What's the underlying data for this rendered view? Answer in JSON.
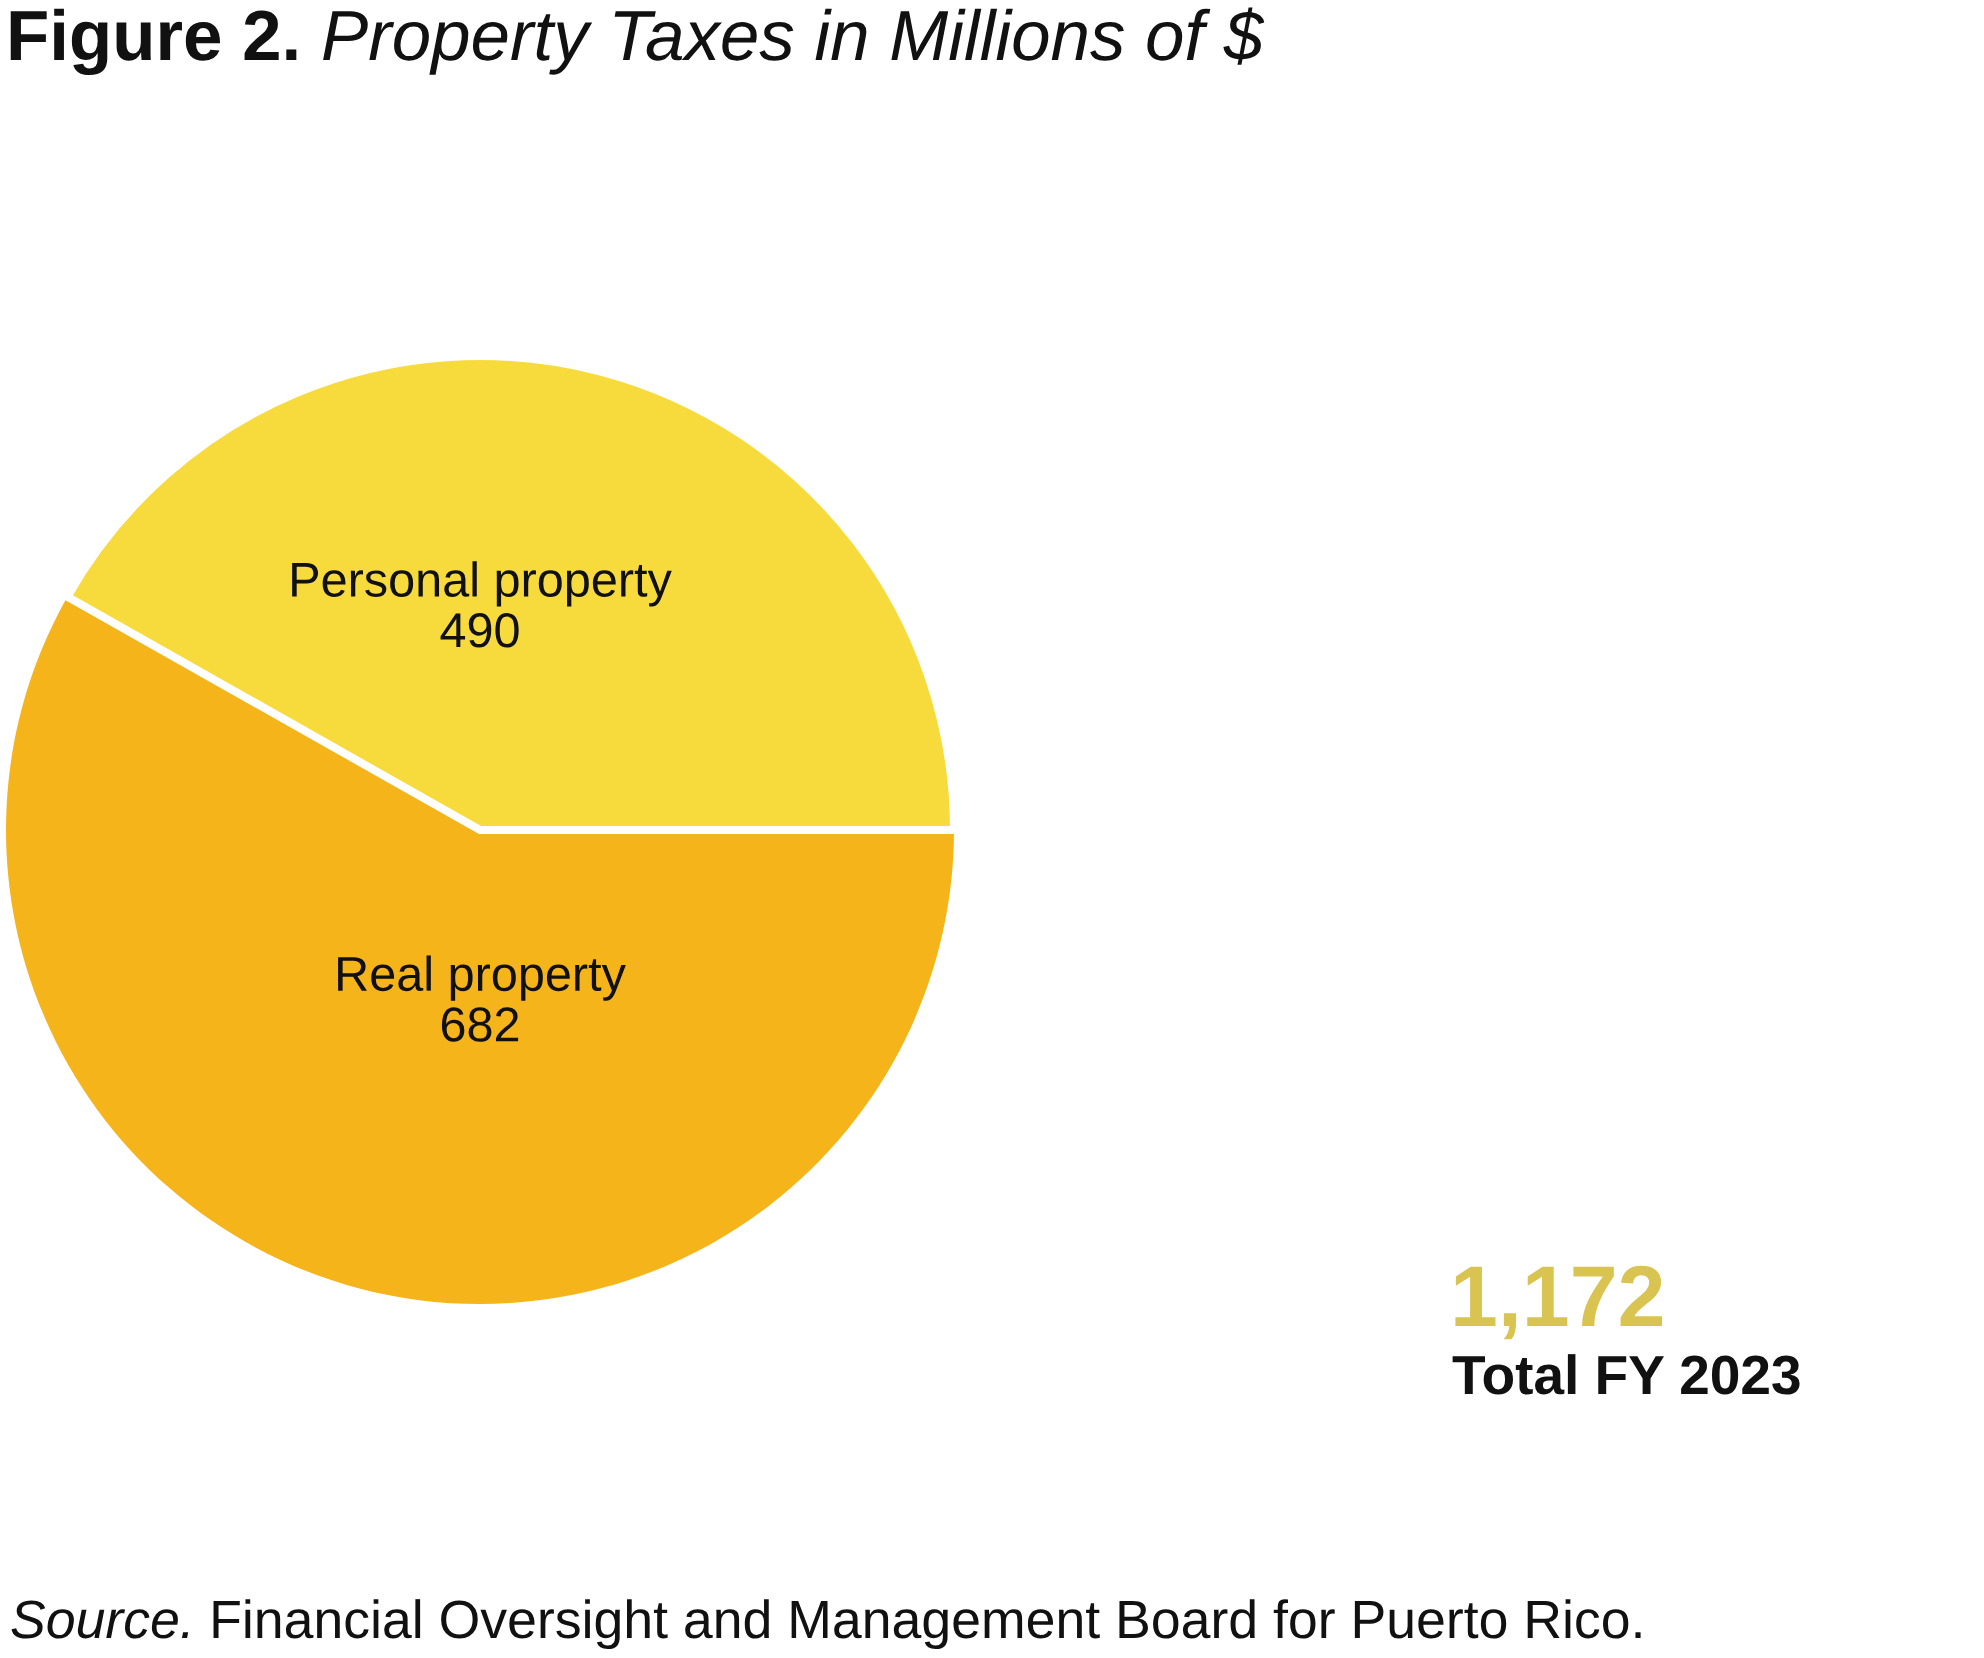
{
  "chart_data": {
    "type": "pie",
    "title": "Figure 2. Property Taxes in Millions of $",
    "categories": [
      "Personal property",
      "Real property"
    ],
    "values": [
      490,
      682
    ],
    "colors": [
      "#f7db3d",
      "#f5b41a"
    ],
    "data_labels": true,
    "annotations": [
      "1,172",
      "Total FY 2023",
      "Source. Financial Oversight and Management Board for Puerto Rico."
    ]
  }
}
